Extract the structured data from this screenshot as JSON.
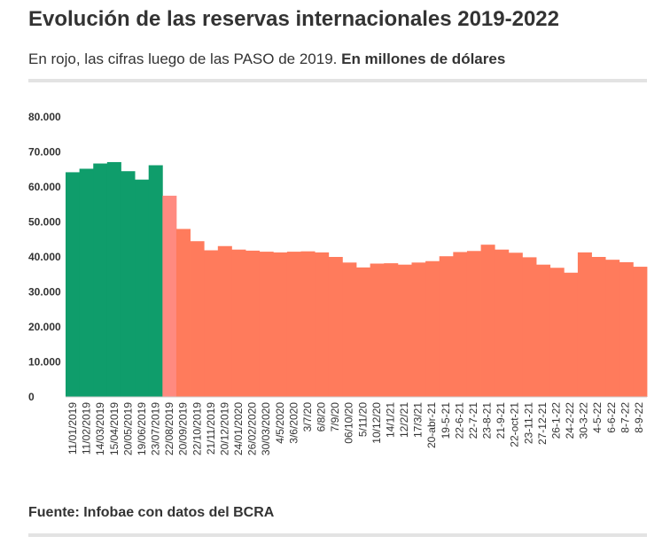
{
  "header": {
    "title": "Evolución de las reservas internacionales 2019-2022",
    "subtitle_lead": "En rojo, las cifras luego de las PASO de 2019. ",
    "subtitle_bold": "En millones de dólares"
  },
  "footer": {
    "source_label": "Fuente: ",
    "source_outlet": "Infobae",
    "source_rest": " con datos del BCRA"
  },
  "colors": {
    "pre_paso": "#0f9d6b",
    "post_paso": "#ff7b5c",
    "post_paso_light": "#ff8a80",
    "text": "#333333",
    "rule": "#e3e3e3",
    "baseline": "#cccccc"
  },
  "chart_data": {
    "type": "bar",
    "title": "Evolución de las reservas internacionales 2019-2022",
    "ylabel": "",
    "xlabel": "",
    "ylim": [
      0,
      80000
    ],
    "y_ticks": [
      "80.000",
      "70.000",
      "60.000",
      "50.000",
      "40.000",
      "30.000",
      "20.000",
      "10.000",
      "0"
    ],
    "x_tick_labels": [
      "11/01/2019",
      "11/02/2019",
      "14/03/2019",
      "15/04/2019",
      "20/05/2019",
      "19/06/2019",
      "23/07/2019",
      "22/08/2019",
      "20/09/2019",
      "22/10/2019",
      "21/11/2019",
      "20/12/2019",
      "24/01/2020",
      "26/02/2020",
      "30/03/2020",
      "4/5/2020",
      "3/6/2020",
      "3/7/20",
      "6/8/20",
      "7/9/20",
      "06/10/20",
      "5/11/20",
      "10/12/20",
      "14/1/21",
      "12/2/21",
      "17/3/21",
      "20-abr-21",
      "19-5-21",
      "22-6-21",
      "22-7-21",
      "23-8-21",
      "21-9-21",
      "22-oct-21",
      "23-11-21",
      "27-12-21",
      "26-1-22",
      "24-2-22",
      "30-3-22",
      "4-5-22",
      "6-6-22",
      "8-7-22",
      "8-9-22"
    ],
    "series": [
      {
        "name": "",
        "segment": "pre_paso",
        "x": [
          "11/01/2019",
          "11/02/2019",
          "14/03/2019",
          "15/04/2019",
          "20/05/2019",
          "19/06/2019",
          "23/07/2019"
        ],
        "values": [
          64200,
          65200,
          66700,
          67100,
          64500,
          62100,
          66200
        ]
      },
      {
        "name": "",
        "segment": "post_paso",
        "x": [
          "22/08/2019",
          "20/09/2019",
          "22/10/2019",
          "21/11/2019",
          "20/12/2019",
          "24/01/2020",
          "26/02/2020",
          "30/03/2020",
          "4/5/2020",
          "3/6/2020",
          "3/7/20",
          "6/8/20",
          "7/9/20",
          "06/10/20",
          "5/11/20",
          "10/12/20",
          "14/1/21",
          "12/2/21",
          "17/3/21",
          "20-abr-21",
          "19-5-21",
          "22-6-21",
          "22-7-21",
          "23-8-21",
          "21-9-21",
          "22-oct-21",
          "23-11-21",
          "27-12-21",
          "26-1-22",
          "24-2-22",
          "30-3-22",
          "4-5-22",
          "6-6-22",
          "8-7-22",
          "8-9-22"
        ],
        "values": [
          57500,
          48000,
          44500,
          41900,
          43100,
          42100,
          41800,
          41500,
          41300,
          41500,
          41600,
          41300,
          40000,
          38400,
          37000,
          38100,
          38200,
          37800,
          38400,
          38800,
          40200,
          41400,
          41700,
          43500,
          42100,
          41200,
          39900,
          37800,
          36900,
          35500,
          41300,
          40000,
          39200,
          38500,
          37200
        ]
      }
    ],
    "grid": false,
    "legend": "none"
  }
}
